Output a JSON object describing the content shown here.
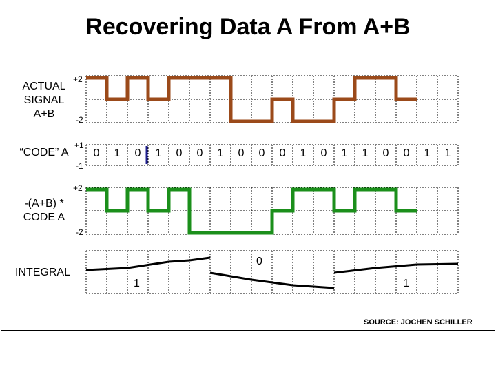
{
  "title": "Recovering Data A From A+B",
  "rows": {
    "actual": {
      "label_lines": [
        "ACTUAL",
        "SIGNAL",
        "A+B"
      ],
      "top_tick": "+2",
      "bottom_tick": "-2",
      "color": "#9b4a1a",
      "levels": [
        2,
        0,
        2,
        0,
        2,
        2,
        -2,
        0,
        -2,
        0,
        2,
        0
      ]
    },
    "code": {
      "label": "“CODE” A",
      "top_tick": "+1",
      "bottom_tick": "-1",
      "color": "#1f1f8f",
      "digits": [
        "0",
        "1",
        "0",
        "1",
        "0",
        "0",
        "1",
        "0",
        "0",
        "0",
        "1",
        "0",
        "1",
        "1",
        "0",
        "0",
        "1",
        "1"
      ]
    },
    "product": {
      "label_lines": [
        "-(A+B) *",
        "CODE A"
      ],
      "top_tick": "+2",
      "bottom_tick": "-2",
      "color": "#1b8f1b",
      "levels": [
        2,
        0,
        2,
        0,
        2,
        -2,
        -2,
        0,
        2,
        0,
        2,
        0
      ]
    },
    "integral": {
      "label": "INTEGRAL",
      "bits": [
        "1",
        "0",
        "1"
      ]
    }
  },
  "source": "SOURCE: JOCHEN SCHILLER"
}
